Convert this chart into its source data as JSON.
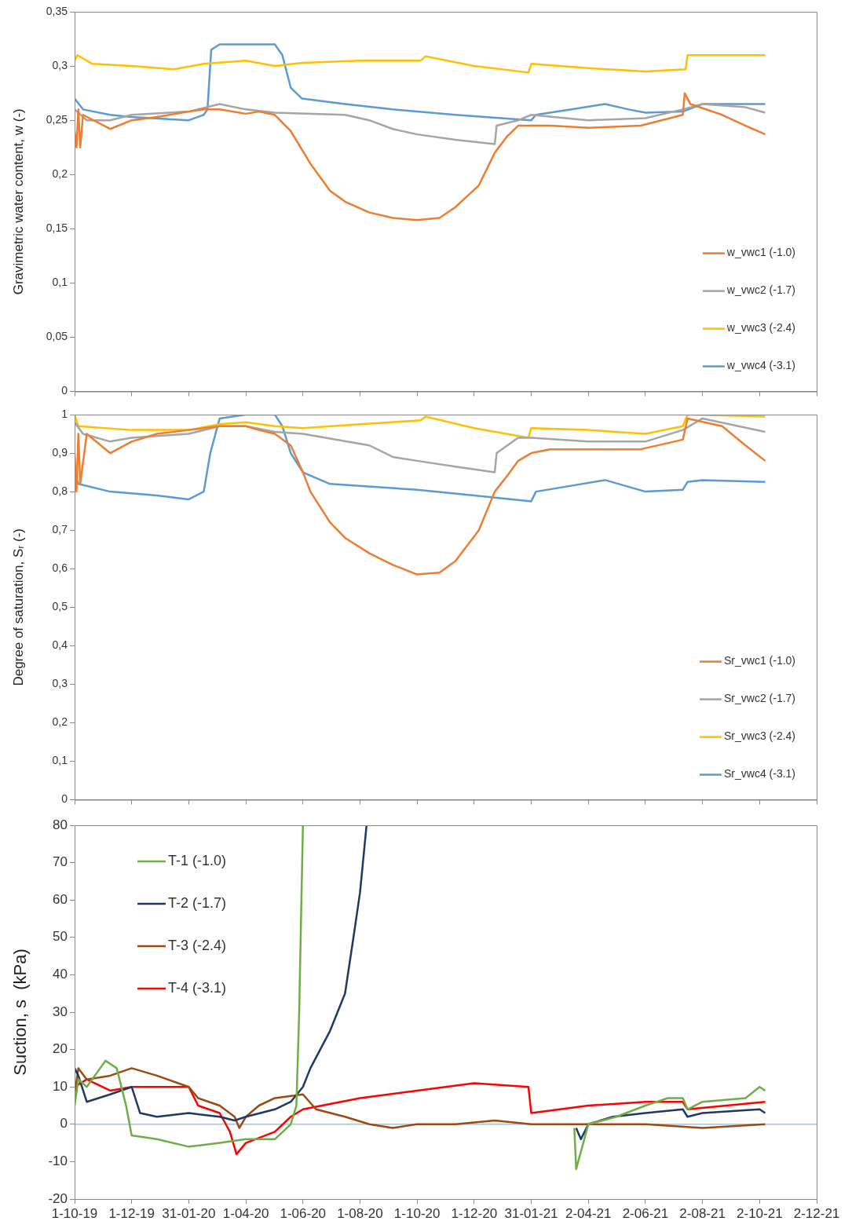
{
  "chart_data": [
    {
      "type": "line",
      "ylabel": "Gravimetric water content, w (-)",
      "legend": "bottom right",
      "tick_labels": "y",
      "xlim": [
        "2019-10-01",
        "2021-12-02"
      ],
      "xticks": [
        "2019-10-01",
        "2019-12-01",
        "2020-01-31",
        "2020-04-01",
        "2020-06-01",
        "2020-08-01",
        "2020-10-01",
        "2020-12-01",
        "2021-01-31",
        "2021-04-02",
        "2021-06-02",
        "2021-08-02",
        "2021-10-02",
        "2021-12-02"
      ],
      "ylim": [
        0,
        0.35
      ],
      "yticks": [
        0,
        {
          "value": 0.05,
          "label": "0,05"
        },
        {
          "value": 0.1,
          "label": "0,1"
        },
        {
          "value": 0.15,
          "label": "0,15"
        },
        {
          "value": 0.2,
          "label": "0,2"
        },
        {
          "value": 0.25,
          "label": "0,25"
        },
        {
          "value": 0.3,
          "label": "0,3"
        },
        {
          "value": 0.35,
          "label": "0,35"
        }
      ],
      "series": [
        {
          "name": "w_vwc1 (-1.0)",
          "color": "#ed7d31",
          "x": [
            "2019-10-01",
            "2019-10-03",
            "2019-10-05",
            "2019-10-07",
            "2019-10-10",
            "2019-11-08",
            "2019-12-01",
            "2019-12-28",
            "2020-01-31",
            "2020-02-16",
            "2020-03-04",
            "2020-04-01",
            "2020-04-15",
            "2020-05-02",
            "2020-05-19",
            "2020-06-09",
            "2020-06-30",
            "2020-07-16",
            "2020-08-11",
            "2020-09-05",
            "2020-10-01",
            "2020-10-25",
            "2020-11-11",
            "2020-12-06",
            "2020-12-23",
            "2021-01-05",
            "2021-01-17",
            "2021-01-31",
            "2021-02-20",
            "2021-04-02",
            "2021-05-28",
            "2021-07-12",
            "2021-07-14",
            "2021-07-20",
            "2021-08-23",
            "2021-09-17",
            "2021-10-08"
          ],
          "values": [
            0.24,
            0.225,
            0.26,
            0.225,
            0.255,
            0.242,
            0.25,
            0.253,
            0.258,
            0.26,
            0.26,
            0.256,
            0.258,
            0.255,
            0.24,
            0.21,
            0.185,
            0.175,
            0.165,
            0.16,
            0.158,
            0.16,
            0.17,
            0.19,
            0.22,
            0.235,
            0.245,
            0.245,
            0.245,
            0.243,
            0.245,
            0.255,
            0.275,
            0.265,
            0.255,
            0.245,
            0.237
          ]
        },
        {
          "name": "w_vwc2 (-1.7)",
          "color": "#a5a5a5",
          "x": [
            "2019-10-01",
            "2019-10-14",
            "2019-11-08",
            "2019-12-01",
            "2020-01-31",
            "2020-03-04",
            "2020-04-01",
            "2020-05-02",
            "2020-07-16",
            "2020-08-11",
            "2020-09-05",
            "2020-10-01",
            "2020-11-11",
            "2020-12-23",
            "2020-12-25",
            "2021-01-17",
            "2021-01-31",
            "2021-04-02",
            "2021-06-02",
            "2021-07-12",
            "2021-08-02",
            "2021-09-17",
            "2021-10-08"
          ],
          "values": [
            0.26,
            0.25,
            0.25,
            0.255,
            0.258,
            0.265,
            0.26,
            0.257,
            0.255,
            0.25,
            0.242,
            0.237,
            0.232,
            0.228,
            0.245,
            0.25,
            0.255,
            0.25,
            0.252,
            0.26,
            0.265,
            0.262,
            0.257
          ]
        },
        {
          "name": "w_vwc3 (-2.4)",
          "color": "#ffc000",
          "x": [
            "2019-10-01",
            "2019-10-04",
            "2019-10-20",
            "2019-12-01",
            "2020-01-15",
            "2020-02-16",
            "2020-04-01",
            "2020-05-02",
            "2020-06-01",
            "2020-08-01",
            "2020-10-05",
            "2020-10-10",
            "2020-12-01",
            "2021-01-28",
            "2021-01-31",
            "2021-04-02",
            "2021-06-02",
            "2021-07-15",
            "2021-07-17",
            "2021-10-08"
          ],
          "values": [
            0.305,
            0.31,
            0.302,
            0.3,
            0.297,
            0.302,
            0.305,
            0.3,
            0.303,
            0.305,
            0.305,
            0.309,
            0.3,
            0.294,
            0.302,
            0.298,
            0.295,
            0.297,
            0.31,
            0.31
          ]
        },
        {
          "name": "w_vwc4 (-3.1)",
          "color": "#5b9bd5",
          "x": [
            "2019-10-01",
            "2019-10-10",
            "2019-11-08",
            "2019-12-01",
            "2020-01-31",
            "2020-02-16",
            "2020-02-20",
            "2020-02-24",
            "2020-03-04",
            "2020-05-02",
            "2020-05-10",
            "2020-05-19",
            "2020-05-31",
            "2020-07-16",
            "2020-09-05",
            "2020-11-11",
            "2021-01-31",
            "2021-02-05",
            "2021-03-15",
            "2021-04-20",
            "2021-05-15",
            "2021-06-02",
            "2021-07-12",
            "2021-08-02",
            "2021-10-08"
          ],
          "values": [
            0.27,
            0.26,
            0.255,
            0.253,
            0.25,
            0.255,
            0.26,
            0.315,
            0.32,
            0.32,
            0.31,
            0.28,
            0.27,
            0.265,
            0.26,
            0.255,
            0.25,
            0.255,
            0.26,
            0.265,
            0.26,
            0.257,
            0.258,
            0.265,
            0.265
          ]
        }
      ]
    },
    {
      "type": "line",
      "ylabel": "Degree of saturation, Sᵣ (-)",
      "legend": "bottom right",
      "tick_labels": "y",
      "xlim": [
        "2019-10-01",
        "2021-12-02"
      ],
      "xticks": [
        "2019-10-01",
        "2019-12-01",
        "2020-01-31",
        "2020-04-01",
        "2020-06-01",
        "2020-08-01",
        "2020-10-01",
        "2020-12-01",
        "2021-01-31",
        "2021-04-02",
        "2021-06-02",
        "2021-08-02",
        "2021-10-02",
        "2021-12-02"
      ],
      "ylim": [
        0,
        1
      ],
      "yticks": [
        0,
        {
          "value": 0.1,
          "label": "0,1"
        },
        {
          "value": 0.2,
          "label": "0,2"
        },
        {
          "value": 0.3,
          "label": "0,3"
        },
        {
          "value": 0.4,
          "label": "0,4"
        },
        {
          "value": 0.5,
          "label": "0,5"
        },
        {
          "value": 0.6,
          "label": "0,6"
        },
        {
          "value": 0.7,
          "label": "0,7"
        },
        {
          "value": 0.8,
          "label": "0,8"
        },
        {
          "value": 0.9,
          "label": "0,9"
        },
        1
      ],
      "series": [
        {
          "name": "Sr_vwc1 (-1.0)",
          "color": "#ed7d31",
          "x": [
            "2019-10-01",
            "2019-10-03",
            "2019-10-05",
            "2019-10-07",
            "2019-10-14",
            "2019-11-08",
            "2019-12-01",
            "2019-12-28",
            "2020-01-31",
            "2020-03-04",
            "2020-04-01",
            "2020-04-15",
            "2020-05-02",
            "2020-05-19",
            "2020-06-01",
            "2020-06-09",
            "2020-06-30",
            "2020-07-16",
            "2020-08-11",
            "2020-09-05",
            "2020-10-01",
            "2020-10-25",
            "2020-11-11",
            "2020-12-06",
            "2020-12-23",
            "2021-01-05",
            "2021-01-17",
            "2021-01-31",
            "2021-02-20",
            "2021-04-02",
            "2021-05-28",
            "2021-07-12",
            "2021-07-17",
            "2021-08-23",
            "2021-09-17",
            "2021-10-08"
          ],
          "values": [
            0.9,
            0.8,
            0.95,
            0.82,
            0.95,
            0.9,
            0.93,
            0.95,
            0.96,
            0.97,
            0.97,
            0.96,
            0.95,
            0.92,
            0.85,
            0.8,
            0.72,
            0.68,
            0.64,
            0.61,
            0.585,
            0.59,
            0.62,
            0.7,
            0.8,
            0.84,
            0.88,
            0.9,
            0.91,
            0.91,
            0.91,
            0.935,
            0.99,
            0.97,
            0.92,
            0.88
          ]
        },
        {
          "name": "Sr_vwc2 (-1.7)",
          "color": "#a5a5a5",
          "x": [
            "2019-10-01",
            "2019-10-10",
            "2019-11-08",
            "2019-12-01",
            "2020-01-31",
            "2020-03-04",
            "2020-04-01",
            "2020-05-02",
            "2020-06-01",
            "2020-08-11",
            "2020-09-05",
            "2020-10-01",
            "2020-11-11",
            "2020-12-23",
            "2020-12-25",
            "2021-01-17",
            "2021-01-31",
            "2021-04-02",
            "2021-06-02",
            "2021-07-12",
            "2021-08-02",
            "2021-10-08"
          ],
          "values": [
            0.98,
            0.95,
            0.93,
            0.94,
            0.95,
            0.97,
            0.97,
            0.955,
            0.95,
            0.92,
            0.89,
            0.88,
            0.865,
            0.85,
            0.9,
            0.94,
            0.94,
            0.93,
            0.93,
            0.96,
            0.99,
            0.955
          ]
        },
        {
          "name": "Sr_vwc3 (-2.4)",
          "color": "#ffc000",
          "x": [
            "2019-10-01",
            "2019-10-05",
            "2019-12-01",
            "2020-01-31",
            "2020-03-04",
            "2020-04-01",
            "2020-05-02",
            "2020-06-01",
            "2020-08-01",
            "2020-10-05",
            "2020-10-10",
            "2020-12-01",
            "2021-01-28",
            "2021-01-31",
            "2021-04-02",
            "2021-06-02",
            "2021-07-12",
            "2021-07-17",
            "2021-10-08"
          ],
          "values": [
            1,
            0.97,
            0.96,
            0.96,
            0.975,
            0.98,
            0.97,
            0.965,
            0.975,
            0.985,
            0.995,
            0.965,
            0.94,
            0.965,
            0.96,
            0.95,
            0.97,
            1,
            0.995
          ]
        },
        {
          "name": "Sr_vwc4 (-3.1)",
          "color": "#5b9bd5",
          "x": [
            "2019-10-01",
            "2019-10-05",
            "2019-11-08",
            "2019-12-28",
            "2020-01-31",
            "2020-02-16",
            "2020-02-23",
            "2020-03-04",
            "2020-04-01",
            "2020-05-02",
            "2020-05-10",
            "2020-05-19",
            "2020-06-01",
            "2020-06-30",
            "2020-10-01",
            "2020-12-01",
            "2021-01-31",
            "2021-02-05",
            "2021-04-20",
            "2021-06-02",
            "2021-07-12",
            "2021-07-17",
            "2021-08-02",
            "2021-10-08"
          ],
          "values": [
            0.85,
            0.82,
            0.8,
            0.79,
            0.78,
            0.8,
            0.9,
            0.99,
            1,
            1,
            0.97,
            0.9,
            0.85,
            0.82,
            0.805,
            0.79,
            0.775,
            0.8,
            0.83,
            0.8,
            0.805,
            0.825,
            0.83,
            0.825
          ]
        }
      ]
    },
    {
      "type": "line",
      "ylabel": "Suction, s  (kPa)",
      "legend": "top left",
      "xlim": [
        "2019-10-01",
        "2021-12-02"
      ],
      "xticks": [
        {
          "value": "2019-10-01",
          "label": "1-10-19"
        },
        {
          "value": "2019-12-01",
          "label": "1-12-19"
        },
        {
          "value": "2020-01-31",
          "label": "31-01-20"
        },
        {
          "value": "2020-04-01",
          "label": "1-04-20"
        },
        {
          "value": "2020-06-01",
          "label": "1-06-20"
        },
        {
          "value": "2020-08-01",
          "label": "1-08-20"
        },
        {
          "value": "2020-10-01",
          "label": "1-10-20"
        },
        {
          "value": "2020-12-01",
          "label": "1-12-20"
        },
        {
          "value": "2021-01-31",
          "label": "31-01-21"
        },
        {
          "value": "2021-04-02",
          "label": "2-04-21"
        },
        {
          "value": "2021-06-02",
          "label": "2-06-21"
        },
        {
          "value": "2021-08-02",
          "label": "2-08-21"
        },
        {
          "value": "2021-10-02",
          "label": "2-10-21"
        },
        {
          "value": "2021-12-02",
          "label": "2-12-21"
        }
      ],
      "ylim": [
        -20,
        80
      ],
      "yticks": [
        -20,
        -10,
        0,
        10,
        20,
        30,
        40,
        50,
        60,
        70,
        80
      ],
      "ref_lines": [
        {
          "axis": "y",
          "value": 0,
          "color": "#9dc3e6"
        }
      ],
      "series": [
        {
          "name": "T-1 (-1.0)",
          "color": "#70ad47",
          "x": [
            "2019-10-01",
            "2019-10-05",
            "2019-10-14",
            "2019-11-03",
            "2019-11-15",
            "2019-11-25",
            "2019-12-01",
            "2019-12-28",
            "2020-01-31",
            "2020-03-04",
            "2020-04-01",
            "2020-05-02",
            "2020-05-19",
            "2020-05-25",
            "2020-05-28",
            "2020-06-01",
            "2020-06-10",
            "2021-03-18",
            "2021-03-20",
            "2021-04-02",
            "2021-05-02",
            "2021-06-02",
            "2021-06-26",
            "2021-07-12",
            "2021-07-17",
            "2021-08-02",
            "2021-09-17",
            "2021-10-02",
            "2021-10-08"
          ],
          "values": [
            5,
            12,
            10,
            17,
            15,
            5,
            -3,
            -4,
            -6,
            -5,
            -4,
            -4,
            0,
            5,
            30,
            80,
            null,
            -1,
            -12,
            0,
            2,
            5,
            7,
            7,
            4,
            6,
            7,
            10,
            9
          ]
        },
        {
          "name": "T-2 (-1.7)",
          "color": "#203864",
          "x": [
            "2019-10-01",
            "2019-10-05",
            "2019-10-14",
            "2019-11-08",
            "2019-12-01",
            "2019-12-10",
            "2019-12-28",
            "2020-01-31",
            "2020-03-04",
            "2020-03-20",
            "2020-04-01",
            "2020-05-02",
            "2020-05-19",
            "2020-06-01",
            "2020-06-09",
            "2020-06-30",
            "2020-07-16",
            "2020-07-25",
            "2020-08-01",
            "2020-08-08",
            "2020-09-01",
            "2021-03-20",
            "2021-03-25",
            "2021-04-02",
            "2021-04-28",
            "2021-06-02",
            "2021-07-12",
            "2021-07-17",
            "2021-08-02",
            "2021-10-02",
            "2021-10-08"
          ],
          "values": [
            15,
            13,
            6,
            8,
            10,
            3,
            2,
            3,
            2,
            1,
            2,
            4,
            6,
            10,
            15,
            25,
            35,
            50,
            62,
            80,
            null,
            -1,
            -4,
            0,
            2,
            3,
            4,
            2,
            3,
            4,
            3
          ]
        },
        {
          "name": "T-3 (-2.4)",
          "color": "#9c4a14",
          "x": [
            "2019-10-01",
            "2019-10-05",
            "2019-10-14",
            "2019-11-08",
            "2019-12-01",
            "2019-12-28",
            "2020-01-31",
            "2020-02-10",
            "2020-03-04",
            "2020-03-20",
            "2020-03-25",
            "2020-04-01",
            "2020-04-15",
            "2020-05-02",
            "2020-06-01",
            "2020-06-15",
            "2020-07-16",
            "2020-08-11",
            "2020-09-05",
            "2020-10-01",
            "2020-11-11",
            "2020-12-23",
            "2021-01-31",
            "2021-04-02",
            "2021-06-02",
            "2021-08-02",
            "2021-10-08"
          ],
          "values": [
            8,
            15,
            12,
            13,
            15,
            13,
            10,
            7,
            5,
            2,
            -1,
            2,
            5,
            7,
            8,
            4,
            2,
            0,
            -1,
            0,
            0,
            1,
            0,
            0,
            0,
            -1,
            0
          ]
        },
        {
          "name": "T-4 (-3.1)",
          "color": "#ff0000",
          "x": [
            "2019-10-01",
            "2019-10-14",
            "2019-11-08",
            "2019-12-01",
            "2019-12-28",
            "2020-01-31",
            "2020-02-10",
            "2020-03-04",
            "2020-03-15",
            "2020-03-22",
            "2020-04-01",
            "2020-05-02",
            "2020-05-19",
            "2020-06-01",
            "2020-08-01",
            "2020-10-01",
            "2020-12-01",
            "2021-01-28",
            "2021-01-31",
            "2021-04-02",
            "2021-06-02",
            "2021-07-12",
            "2021-07-17",
            "2021-10-08"
          ],
          "values": [
            10,
            12,
            9,
            10,
            10,
            10,
            5,
            3,
            -2,
            -8,
            -5,
            -2,
            2,
            4,
            7,
            9,
            11,
            10,
            3,
            5,
            6,
            6,
            4,
            6
          ]
        }
      ]
    }
  ]
}
